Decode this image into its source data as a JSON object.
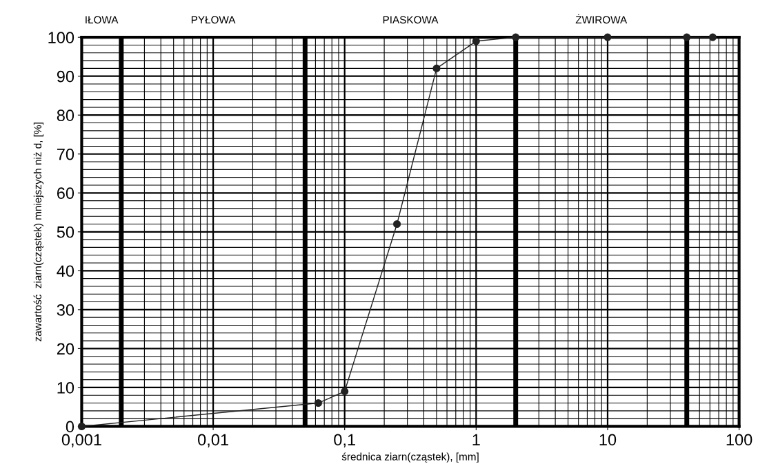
{
  "chart_data": {
    "type": "line",
    "xlabel": "średnica ziarn(cząstek), [mm]",
    "ylabel": "zawartość  ziarn(cząstek) mniejszych niż d, [%]",
    "log": "x",
    "x": [
      0.001,
      0.063,
      0.1,
      0.25,
      0.5,
      1,
      2,
      10,
      40,
      63
    ],
    "series": [
      {
        "color": "#222222",
        "values": [
          0,
          6,
          9,
          52,
          92,
          99,
          100,
          100,
          100,
          100
        ]
      }
    ],
    "marker": "circle",
    "line_style": "solid",
    "xlim": [
      0.001,
      100
    ],
    "xticks": [
      {
        "value": 0.001,
        "label": "0,001"
      },
      {
        "value": 0.01,
        "label": "0,01"
      },
      {
        "value": 0.1,
        "label": "0,1"
      },
      1,
      10,
      100
    ],
    "ylim": [
      0,
      100
    ],
    "yticks": [
      0,
      10,
      20,
      30,
      40,
      50,
      60,
      70,
      80,
      90,
      100
    ],
    "grid": true,
    "ref_lines": [
      {
        "axis": "x",
        "value": 0.002,
        "color": "#000000"
      },
      {
        "axis": "x",
        "value": 0.05,
        "color": "#000000"
      },
      {
        "axis": "x",
        "value": 2,
        "color": "#000000"
      },
      {
        "axis": "x",
        "value": 40,
        "color": "#000000"
      }
    ],
    "annotations": [
      "IŁOWA",
      "PYŁOWA",
      "PIASKOWA",
      "ŻWIROWA"
    ]
  }
}
